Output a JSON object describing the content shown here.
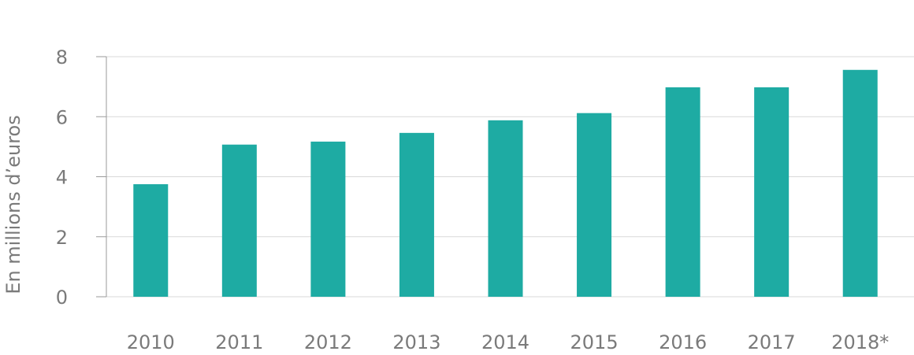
{
  "chart_data": {
    "type": "bar",
    "y_label": "En millions d’euros",
    "categories": [
      "2010",
      "2011",
      "2012",
      "2013",
      "2014",
      "2015",
      "2016",
      "2017",
      "2018*"
    ],
    "values": [
      3.75,
      5.07,
      5.17,
      5.46,
      5.88,
      6.12,
      6.98,
      6.98,
      7.56
    ],
    "color": "#1eaba3",
    "ylim": [
      0,
      8
    ],
    "yticks": [
      0,
      2,
      4,
      6,
      8
    ],
    "grid": true
  }
}
